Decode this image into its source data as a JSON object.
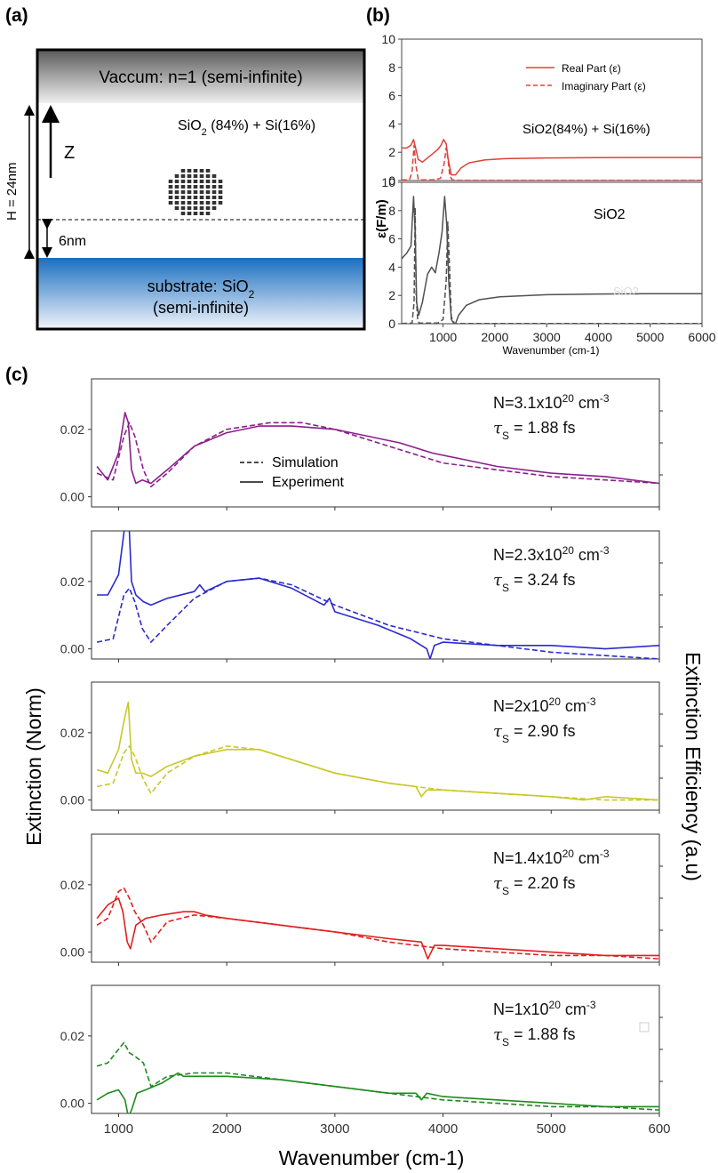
{
  "panel_labels": {
    "a": "(a)",
    "b": "(b)",
    "c": "(c)"
  },
  "schematic": {
    "vacuum_label": "Vaccum: n=1 (semi-infinite)",
    "film_label_pre": "SiO",
    "film_label_sub": "2",
    "film_label_post": " (84%) + Si(16%)",
    "z_label": "Z",
    "height_label": "H = 24nm",
    "gap_label": "6nm",
    "substrate_line1_pre": "substrate: SiO",
    "substrate_line1_sub": "2",
    "substrate_line2": "(semi-infinite)"
  },
  "permittivity": {
    "ylabel": "ε(F/m)",
    "xlabel": "Wavenumber (cm-1)",
    "legend_real": "Real Part (ε)",
    "legend_imag": "Imaginary Part (ε)",
    "top_label": "SiO2(84%) + Si(16%)",
    "bottom_label": "SiO2",
    "bottom_ghost_label": "SiO2",
    "colors": {
      "top": "#e0403a",
      "bottom": "#505050"
    }
  },
  "extinction": {
    "ylabel_left": "Extinction (Norm)",
    "ylabel_right": "Extinction Efficiency (a.u)",
    "xlabel": "Wavenumber (cm-1)",
    "legend_sim": "Simulation",
    "legend_exp": "Experiment"
  },
  "chart_data": [
    {
      "type": "line",
      "id": "b-top",
      "xlim": [
        200,
        6000
      ],
      "ylim": [
        0,
        10
      ],
      "yticks": [
        0,
        2,
        4,
        6,
        8,
        10
      ],
      "legend_placement": "top-right",
      "series": [
        {
          "name": "Real Part (ε)",
          "style": "solid",
          "x": [
            200,
            300,
            380,
            430,
            470,
            520,
            600,
            700,
            800,
            900,
            960,
            1010,
            1060,
            1100,
            1160,
            1240,
            1350,
            1500,
            1800,
            2200,
            3000,
            4000,
            5000,
            6000
          ],
          "y": [
            2.3,
            2.3,
            2.5,
            2.9,
            2.3,
            1.5,
            1.3,
            1.6,
            1.9,
            2.2,
            2.5,
            2.9,
            2.6,
            1.5,
            0.4,
            0.4,
            0.9,
            1.25,
            1.45,
            1.55,
            1.6,
            1.62,
            1.63,
            1.63
          ]
        },
        {
          "name": "Imaginary Part (ε)",
          "style": "dashed",
          "x": [
            200,
            350,
            400,
            440,
            470,
            520,
            560,
            800,
            950,
            1020,
            1060,
            1090,
            1130,
            1180,
            1300,
            6000
          ],
          "y": [
            0.05,
            0.05,
            0.6,
            2.5,
            1.2,
            0.1,
            0.05,
            0.05,
            0.15,
            1.2,
            2.3,
            1.6,
            0.3,
            0.05,
            0.02,
            0.02
          ]
        }
      ]
    },
    {
      "type": "line",
      "id": "b-bottom",
      "xlim": [
        200,
        6000
      ],
      "ylim": [
        0,
        10
      ],
      "yticks": [
        0,
        2,
        4,
        6,
        8,
        10
      ],
      "xticks": [
        1000,
        2000,
        3000,
        4000,
        5000,
        6000
      ],
      "series": [
        {
          "name": "Real Part (ε)",
          "style": "solid",
          "x": [
            200,
            300,
            380,
            430,
            460,
            490,
            530,
            600,
            700,
            780,
            850,
            920,
            980,
            1030,
            1070,
            1110,
            1160,
            1230,
            1300,
            1450,
            1700,
            2100,
            3000,
            4000,
            5000,
            6000
          ],
          "y": [
            4.6,
            5.0,
            5.5,
            9.0,
            6.5,
            1.5,
            0.6,
            1.5,
            3.5,
            4.0,
            3.6,
            5.0,
            6.5,
            9.0,
            7.0,
            3.0,
            0.3,
            -0.1,
            0.6,
            1.3,
            1.7,
            1.9,
            2.05,
            2.1,
            2.12,
            2.12
          ]
        },
        {
          "name": "Imaginary Part (ε)",
          "style": "dashed",
          "x": [
            200,
            400,
            440,
            460,
            480,
            510,
            540,
            900,
            1000,
            1060,
            1090,
            1120,
            1160,
            1220,
            6000
          ],
          "y": [
            0.02,
            0.05,
            1.5,
            8.2,
            2.0,
            0.2,
            0.05,
            0.05,
            0.3,
            3.0,
            7.2,
            4.5,
            0.5,
            0.02,
            0.02
          ]
        }
      ]
    },
    {
      "type": "line",
      "id": "c1",
      "color": "#8a1f8a",
      "annotation_N": "N=3.1x10",
      "annotation_N_exp": "20",
      "annotation_N_unit": " cm",
      "annotation_N_unit_exp": "-3",
      "annotation_tau": "= 1.88 fs",
      "xlim": [
        750,
        6000
      ],
      "ylim": [
        -0.003,
        0.035
      ],
      "yticks": [
        0.0,
        0.02
      ],
      "series": [
        {
          "name": "Experiment",
          "style": "solid",
          "x": [
            800,
            900,
            1000,
            1060,
            1090,
            1120,
            1160,
            1220,
            1300,
            1450,
            1700,
            2000,
            2300,
            2600,
            3000,
            3300,
            3600,
            3900,
            4200,
            4500,
            5000,
            5500,
            6000
          ],
          "y": [
            0.009,
            0.005,
            0.013,
            0.025,
            0.022,
            0.008,
            0.004,
            0.005,
            0.004,
            0.008,
            0.015,
            0.019,
            0.021,
            0.021,
            0.02,
            0.018,
            0.016,
            0.013,
            0.011,
            0.009,
            0.007,
            0.006,
            0.004
          ]
        },
        {
          "name": "Simulation",
          "style": "dashed",
          "x": [
            800,
            950,
            1050,
            1100,
            1150,
            1230,
            1300,
            1450,
            1700,
            2000,
            2400,
            2700,
            3000,
            3500,
            4000,
            4500,
            5000,
            5500,
            6000
          ],
          "y": [
            0.007,
            0.005,
            0.018,
            0.022,
            0.018,
            0.008,
            0.003,
            0.007,
            0.015,
            0.02,
            0.022,
            0.022,
            0.02,
            0.015,
            0.01,
            0.008,
            0.006,
            0.005,
            0.004
          ]
        }
      ]
    },
    {
      "type": "line",
      "id": "c2",
      "color": "#2a2ad0",
      "annotation_N": "N=2.3x10",
      "annotation_N_exp": "20",
      "annotation_N_unit": " cm",
      "annotation_N_unit_exp": "-3",
      "annotation_tau": "= 3.24 fs",
      "xlim": [
        750,
        6000
      ],
      "ylim": [
        -0.003,
        0.035
      ],
      "yticks": [
        0.0,
        0.02
      ],
      "series": [
        {
          "name": "Experiment",
          "style": "solid",
          "x": [
            800,
            900,
            1000,
            1060,
            1090,
            1120,
            1160,
            1230,
            1300,
            1450,
            1700,
            1750,
            1800,
            2000,
            2300,
            2600,
            2900,
            2950,
            3000,
            3400,
            3700,
            3850,
            3880,
            3920,
            4000,
            4500,
            5000,
            5500,
            6000
          ],
          "y": [
            0.016,
            0.016,
            0.022,
            0.037,
            0.042,
            0.02,
            0.016,
            0.014,
            0.013,
            0.015,
            0.017,
            0.019,
            0.017,
            0.02,
            0.021,
            0.018,
            0.013,
            0.015,
            0.011,
            0.007,
            0.003,
            0.0,
            -0.003,
            0.001,
            0.002,
            0.001,
            0.001,
            0.0,
            0.001
          ]
        },
        {
          "name": "Simulation",
          "style": "dashed",
          "x": [
            800,
            950,
            1050,
            1100,
            1150,
            1220,
            1300,
            1450,
            1700,
            2000,
            2300,
            2600,
            3000,
            3500,
            4000,
            4500,
            5000,
            5500,
            6000
          ],
          "y": [
            0.002,
            0.003,
            0.016,
            0.018,
            0.014,
            0.006,
            0.002,
            0.007,
            0.015,
            0.02,
            0.021,
            0.019,
            0.013,
            0.007,
            0.003,
            0.001,
            -0.001,
            -0.002,
            -0.003
          ]
        }
      ]
    },
    {
      "type": "line",
      "id": "c3",
      "color": "#c8c82a",
      "annotation_N": "N=2x10",
      "annotation_N_exp": "20",
      "annotation_N_unit": " cm",
      "annotation_N_unit_exp": "-3",
      "annotation_tau": "= 2.90 fs",
      "xlim": [
        750,
        6000
      ],
      "ylim": [
        -0.003,
        0.035
      ],
      "yticks": [
        0.0,
        0.02
      ],
      "series": [
        {
          "name": "Experiment",
          "style": "solid",
          "x": [
            800,
            900,
            1000,
            1060,
            1090,
            1120,
            1160,
            1220,
            1300,
            1450,
            1700,
            2000,
            2300,
            2600,
            3000,
            3500,
            3750,
            3800,
            3850,
            4000,
            4500,
            5000,
            5300,
            5500,
            6000
          ],
          "y": [
            0.009,
            0.008,
            0.015,
            0.025,
            0.029,
            0.012,
            0.008,
            0.008,
            0.007,
            0.01,
            0.013,
            0.015,
            0.015,
            0.012,
            0.008,
            0.005,
            0.004,
            0.001,
            0.003,
            0.003,
            0.002,
            0.001,
            0.0,
            0.001,
            0.0
          ]
        },
        {
          "name": "Simulation",
          "style": "dashed",
          "x": [
            800,
            950,
            1050,
            1100,
            1150,
            1230,
            1300,
            1450,
            1700,
            2000,
            2300,
            2600,
            3000,
            3500,
            4000,
            4500,
            5000,
            5500,
            6000
          ],
          "y": [
            0.004,
            0.005,
            0.014,
            0.016,
            0.013,
            0.006,
            0.002,
            0.008,
            0.013,
            0.016,
            0.015,
            0.012,
            0.008,
            0.005,
            0.003,
            0.002,
            0.001,
            0.0,
            0.0
          ]
        }
      ]
    },
    {
      "type": "line",
      "id": "c4",
      "color": "#e02020",
      "annotation_N": "N=1.4x10",
      "annotation_N_exp": "20",
      "annotation_N_unit": " cm",
      "annotation_N_unit_exp": "-3",
      "annotation_tau": "= 2.20 fs",
      "xlim": [
        750,
        6000
      ],
      "ylim": [
        -0.003,
        0.035
      ],
      "yticks": [
        0.0,
        0.02
      ],
      "series": [
        {
          "name": "Experiment",
          "style": "solid",
          "x": [
            800,
            900,
            1000,
            1040,
            1080,
            1110,
            1160,
            1250,
            1400,
            1600,
            1700,
            1800,
            2000,
            2500,
            3000,
            3500,
            3800,
            3860,
            3920,
            4000,
            4500,
            5000,
            5500,
            6000
          ],
          "y": [
            0.01,
            0.014,
            0.016,
            0.012,
            0.003,
            0.001,
            0.008,
            0.01,
            0.011,
            0.012,
            0.012,
            0.011,
            0.01,
            0.008,
            0.006,
            0.004,
            0.003,
            -0.002,
            0.002,
            0.002,
            0.001,
            0.0,
            -0.001,
            -0.001
          ]
        },
        {
          "name": "Simulation",
          "style": "dashed",
          "x": [
            800,
            900,
            1000,
            1050,
            1100,
            1150,
            1230,
            1300,
            1450,
            1700,
            2000,
            2500,
            3000,
            3500,
            4000,
            4500,
            5000,
            5500,
            6000
          ],
          "y": [
            0.008,
            0.01,
            0.018,
            0.019,
            0.016,
            0.012,
            0.008,
            0.003,
            0.009,
            0.011,
            0.01,
            0.008,
            0.006,
            0.003,
            0.001,
            0.0,
            -0.001,
            -0.001,
            -0.002
          ]
        }
      ]
    },
    {
      "type": "line",
      "id": "c5",
      "color": "#1f8a1f",
      "annotation_N": "N=1x10",
      "annotation_N_exp": "20",
      "annotation_N_unit": " cm",
      "annotation_N_unit_exp": "-3",
      "annotation_tau": "= 1.88 fs",
      "xlim": [
        750,
        6000
      ],
      "ylim": [
        -0.003,
        0.035
      ],
      "yticks": [
        0.0,
        0.02
      ],
      "series": [
        {
          "name": "Experiment",
          "style": "solid",
          "x": [
            800,
            900,
            1000,
            1060,
            1090,
            1120,
            1170,
            1250,
            1400,
            1500,
            1550,
            1600,
            1800,
            2000,
            2500,
            3000,
            3500,
            3750,
            3800,
            3850,
            4000,
            4500,
            5000,
            5500,
            6000
          ],
          "y": [
            0.001,
            0.003,
            0.004,
            0.001,
            -0.004,
            -0.002,
            0.003,
            0.004,
            0.006,
            0.008,
            0.009,
            0.008,
            0.008,
            0.008,
            0.007,
            0.005,
            0.003,
            0.003,
            0.001,
            0.003,
            0.002,
            0.001,
            0.0,
            -0.001,
            -0.001
          ]
        },
        {
          "name": "Simulation",
          "style": "dashed",
          "x": [
            800,
            900,
            1000,
            1050,
            1100,
            1150,
            1230,
            1300,
            1450,
            1700,
            2000,
            2500,
            3000,
            3500,
            4000,
            4500,
            5000,
            5500,
            6000
          ],
          "y": [
            0.011,
            0.012,
            0.016,
            0.018,
            0.015,
            0.014,
            0.012,
            0.005,
            0.008,
            0.009,
            0.009,
            0.007,
            0.005,
            0.003,
            0.001,
            0.0,
            -0.001,
            -0.001,
            -0.002
          ]
        }
      ]
    }
  ]
}
